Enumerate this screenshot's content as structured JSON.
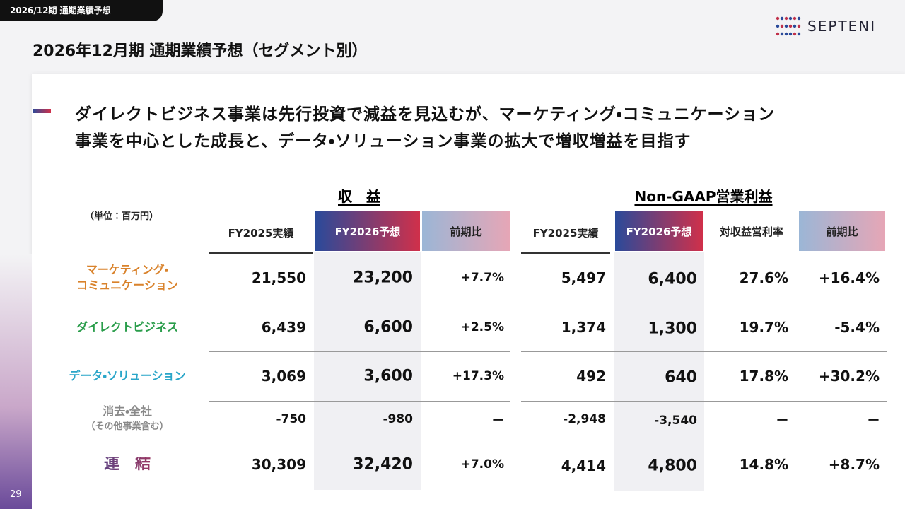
{
  "tag": "2026/12期 通期業績予想",
  "logo": "SEPTENI",
  "title": "2026年12月期 通期業績予想（セグメント別）",
  "message": [
    "ダイレクトビジネス事業は先行投資で減益を見込むが、マーケティング・コミュニケーション",
    "事業を中心とした成長と、データ・ソリューション事業の拡大で増収増益を目指す"
  ],
  "unit": "（単位：百万円）",
  "groups": {
    "revenue": "収　益",
    "profit": "Non-GAAP営業利益"
  },
  "columns": {
    "revenue": [
      "FY2025実績",
      "FY2026予想",
      "前期比"
    ],
    "profit": [
      "FY2025実績",
      "FY2026予想",
      "対収益営利率",
      "前期比"
    ]
  },
  "rows": [
    {
      "label": [
        "マーケティング・",
        "コミュニケーション"
      ],
      "revenue": [
        "21,550",
        "23,200",
        "+7.7%"
      ],
      "profit": [
        "5,497",
        "6,400",
        "27.6%",
        "+16.4%"
      ]
    },
    {
      "label": [
        "ダイレクトビジネス"
      ],
      "revenue": [
        "6,439",
        "6,600",
        "+2.5%"
      ],
      "profit": [
        "1,374",
        "1,300",
        "19.7%",
        "-5.4%"
      ]
    },
    {
      "label": [
        "データ・ソリューション"
      ],
      "revenue": [
        "3,069",
        "3,600",
        "+17.3%"
      ],
      "profit": [
        "492",
        "640",
        "17.8%",
        "+30.2%"
      ]
    },
    {
      "label": [
        "消去・全社",
        "（その他事業含む）"
      ],
      "revenue": [
        "-750",
        "-980",
        "ー"
      ],
      "profit": [
        "-2,948",
        "-3,540",
        "ー",
        "ー"
      ]
    },
    {
      "label": [
        "連　結"
      ],
      "revenue": [
        "30,309",
        "32,420",
        "+7.0%"
      ],
      "profit": [
        "4,414",
        "4,800",
        "14.8%",
        "+8.7%"
      ]
    }
  ],
  "page": "29"
}
